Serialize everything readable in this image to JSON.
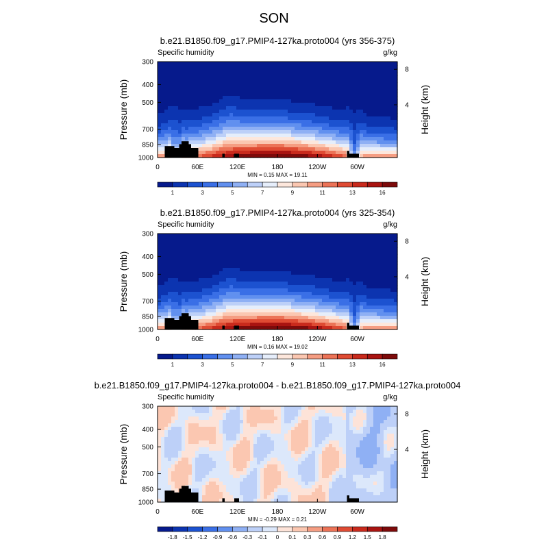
{
  "page_title": "SON",
  "chart_data": [
    {
      "type": "heatmap",
      "title": "b.e21.B1850.f09_g17.PMIP4-127ka.proto004 (yrs 356-375)",
      "field_label": "Specific humidity",
      "units": "g/kg",
      "ylabel": "Pressure (mb)",
      "ylabel_right": "Height (km)",
      "x_ticks": [
        "0",
        "60E",
        "120E",
        "180",
        "120W",
        "60W"
      ],
      "y_ticks": [
        "300",
        "400",
        "500",
        "700",
        "850",
        "1000"
      ],
      "right_ticks": [
        "8",
        "4"
      ],
      "stats": "MIN =  0.15  MAX =  19.11",
      "min": 0.15,
      "max": 19.11,
      "colorbar_labels": [
        "1",
        "3",
        "5",
        "7",
        "9",
        "11",
        "13",
        "16"
      ]
    },
    {
      "type": "heatmap",
      "title": "b.e21.B1850.f09_g17.PMIP4-127ka.proto004 (yrs 325-354)",
      "field_label": "Specific humidity",
      "units": "g/kg",
      "ylabel": "Pressure (mb)",
      "ylabel_right": "Height (km)",
      "x_ticks": [
        "0",
        "60E",
        "120E",
        "180",
        "120W",
        "60W"
      ],
      "y_ticks": [
        "300",
        "400",
        "500",
        "700",
        "850",
        "1000"
      ],
      "right_ticks": [
        "8",
        "4"
      ],
      "stats": "MIN =  0.16  MAX =  19.02",
      "min": 0.16,
      "max": 19.02,
      "colorbar_labels": [
        "1",
        "3",
        "5",
        "7",
        "9",
        "11",
        "13",
        "16"
      ]
    },
    {
      "type": "heatmap",
      "title": "b.e21.B1850.f09_g17.PMIP4-127ka.proto004 - b.e21.B1850.f09_g17.PMIP4-127ka.proto004",
      "field_label": "Specific humidity",
      "units": "g/kg",
      "ylabel": "Pressure (mb)",
      "ylabel_right": "Height (km)",
      "x_ticks": [
        "0",
        "60E",
        "120E",
        "180",
        "120W",
        "60W"
      ],
      "y_ticks": [
        "300",
        "400",
        "500",
        "700",
        "850",
        "1000"
      ],
      "right_ticks": [
        "8",
        "4"
      ],
      "stats": "MIN = -0.29  MAX =  0.21",
      "min": -0.29,
      "max": 0.21,
      "colorbar_labels": [
        "-1.8",
        "-1.5",
        "-1.2",
        "-0.9",
        "-0.6",
        "-0.3",
        "-0.1",
        "0",
        "0.1",
        "0.3",
        "0.6",
        "0.9",
        "1.2",
        "1.5",
        "1.8"
      ]
    }
  ],
  "colors": {
    "abs_palette": [
      "#061a8c",
      "#0c34b0",
      "#1c52d0",
      "#3a6fe6",
      "#6190ef",
      "#8fb0f4",
      "#bdd0f8",
      "#e6eefb",
      "#fde7dc",
      "#fbc7b1",
      "#f59d82",
      "#ec7357",
      "#df4b33",
      "#c92a1c",
      "#a91411",
      "#7d0a0a"
    ],
    "diff_palette": [
      "#061a8c",
      "#0c34b0",
      "#1c52d0",
      "#3a6fe6",
      "#6190ef",
      "#8fb0f4",
      "#bdd0f8",
      "#dce8fb",
      "#fde3d8",
      "#fbc7b1",
      "#f59d82",
      "#ec7357",
      "#df4b33",
      "#c92a1c",
      "#a91411",
      "#7d0a0a"
    ],
    "topography": "#000000"
  }
}
